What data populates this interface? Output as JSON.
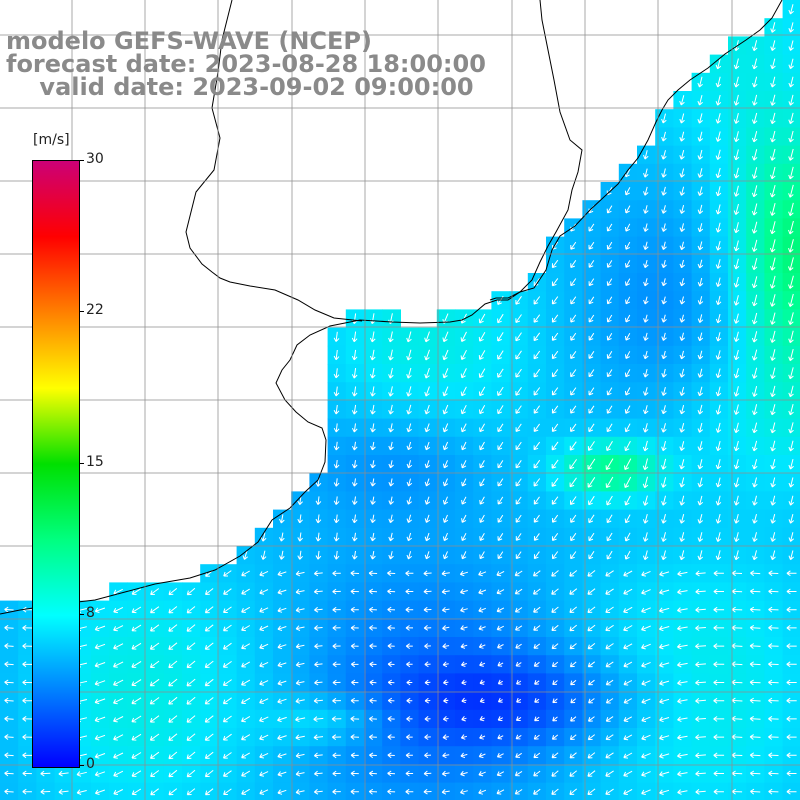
{
  "title": {
    "line1": "modelo GEFS-WAVE (NCEP)",
    "line2": "forecast date: 2023-08-28 18:00:00",
    "line3": "    valid date: 2023-09-02 09:00:00"
  },
  "colorbar": {
    "unit": "[m/s]",
    "min": 0,
    "max": 30,
    "ticks": [
      "30",
      "22",
      "15",
      "8",
      "0"
    ],
    "colors": [
      "#0000ff",
      "#0080ff",
      "#00ffff",
      "#00ff80",
      "#00e000",
      "#ffff00",
      "#ff8000",
      "#ff0000",
      "#cc0077"
    ]
  },
  "map": {
    "variable": "wind speed and direction",
    "field_palette": {
      "low": "#2266ee",
      "mid": "#22aaee",
      "high": "#33ddee",
      "peak": "#22dd55"
    },
    "land_color": "#ffffff",
    "coast_color": "#000000",
    "grid_color": "#9a9a9a",
    "arrow_color": "#ffffff"
  }
}
